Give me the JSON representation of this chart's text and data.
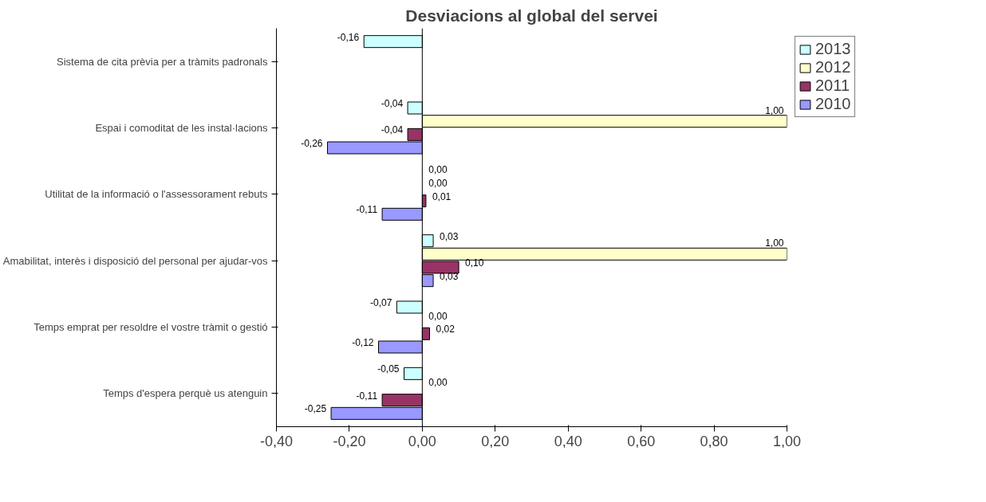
{
  "chart_data": {
    "type": "bar",
    "orientation": "horizontal",
    "title": "Desviacions al global del servei",
    "categories": [
      "Sistema de cita prèvia per a tràmits padronals",
      "Espai i comoditat de les instal·lacions",
      "Utilitat de la informació o l'assessorament rebuts",
      "Amabilitat, interès i disposició del personal per ajudar-vos",
      "Temps emprat per resoldre el vostre tràmit o gestió",
      "Temps d'espera perquè us atenguin"
    ],
    "series": [
      {
        "name": "2013",
        "color": "#ccffff",
        "values": [
          -0.16,
          -0.04,
          0.0,
          0.03,
          -0.07,
          -0.05
        ],
        "value_labels": [
          "-0,16",
          "-0,04",
          "0,00",
          "0,03",
          "-0,07",
          "-0,05"
        ]
      },
      {
        "name": "2012",
        "color": "#ffffcc",
        "values": [
          null,
          1.0,
          0.0,
          1.0,
          0.0,
          0.0
        ],
        "value_labels": [
          null,
          "1,00",
          "0,00",
          "1,00",
          "0,00",
          "0,00"
        ]
      },
      {
        "name": "2011",
        "color": "#993366",
        "values": [
          null,
          -0.04,
          0.01,
          0.1,
          0.02,
          -0.11
        ],
        "value_labels": [
          null,
          "-0,04",
          "0,01",
          "0,10",
          "0,02",
          "-0,11"
        ]
      },
      {
        "name": "2010",
        "color": "#9999ff",
        "values": [
          null,
          -0.26,
          -0.11,
          0.03,
          -0.12,
          -0.25
        ],
        "value_labels": [
          null,
          "-0,26",
          "-0,11",
          "0,03",
          "-0,12",
          "-0,25"
        ]
      }
    ],
    "xlim": [
      -0.4,
      1.0
    ],
    "xticks": [
      {
        "value": -0.4,
        "label": "-0,40"
      },
      {
        "value": -0.2,
        "label": "-0,20"
      },
      {
        "value": 0,
        "label": "0,00"
      },
      {
        "value": 0.2,
        "label": "0,20"
      },
      {
        "value": 0.4,
        "label": "0,40"
      },
      {
        "value": 0.6,
        "label": "0,60"
      },
      {
        "value": 0.8,
        "label": "0,80"
      },
      {
        "value": 1.0,
        "label": "1,00"
      }
    ],
    "ref_lines": [
      {
        "axis": "x",
        "value": 0
      }
    ],
    "grid": false,
    "legend": "top right"
  }
}
